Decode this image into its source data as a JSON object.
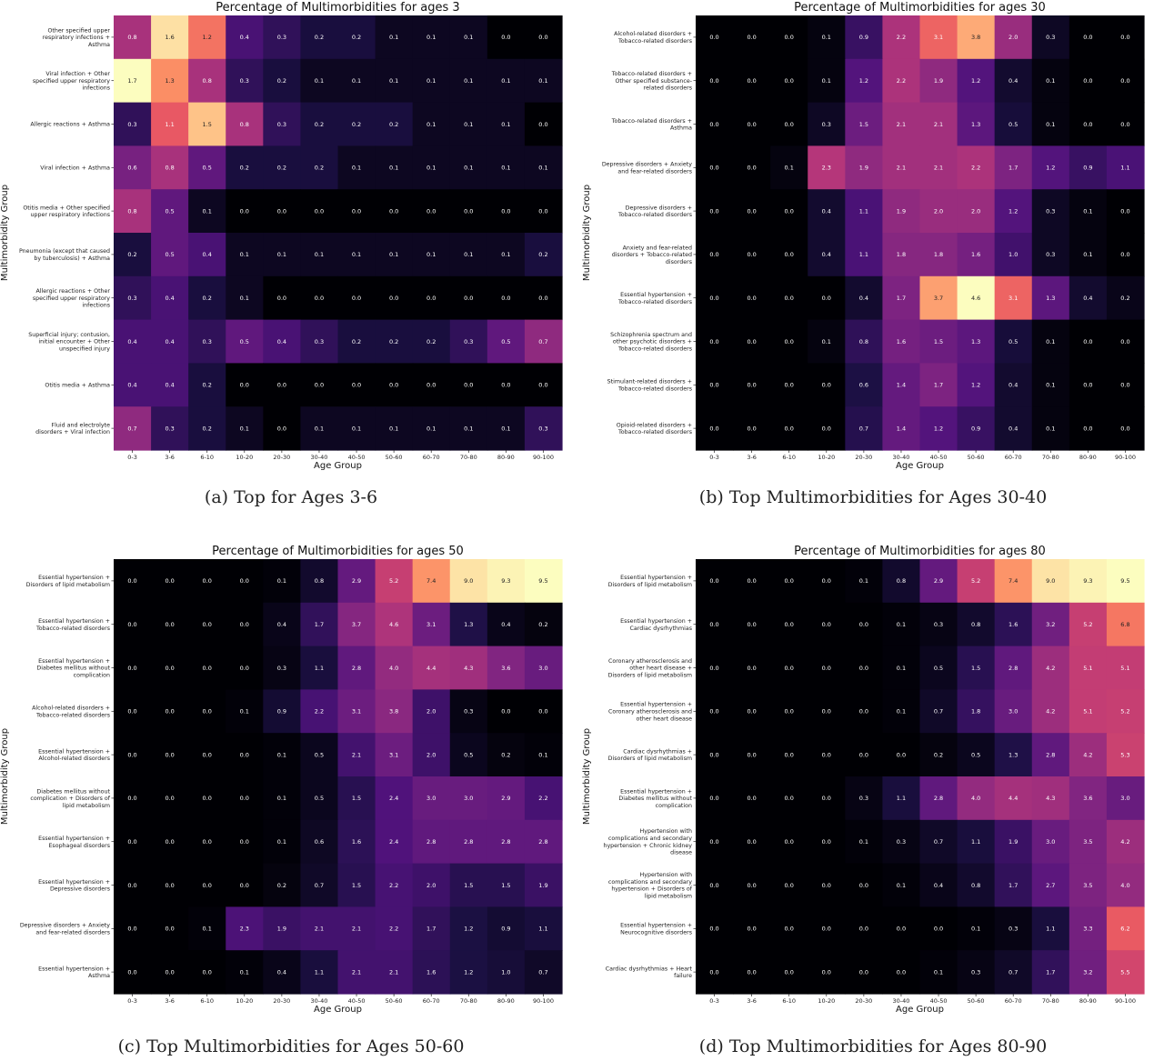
{
  "chart_data": [
    {
      "type": "heatmap",
      "title": "Percentage of Multimorbidities for ages 3",
      "xlabel": "Age Group",
      "ylabel": "Multimorbidity  Group",
      "caption": "(a) Top for Ages 3-6",
      "categories": [
        "0-3",
        "3-6",
        "6-10",
        "10-20",
        "20-30",
        "30-40",
        "40-50",
        "50-60",
        "60-70",
        "70-80",
        "80-90",
        "90-100"
      ],
      "rows": [
        {
          "label": [
            "Other specified upper",
            "respiratory infections +",
            "Asthma"
          ],
          "values": [
            0.8,
            1.6,
            1.2,
            0.4,
            0.3,
            0.2,
            0.2,
            0.1,
            0.1,
            0.1,
            0.0,
            0.0
          ]
        },
        {
          "label": [
            "Viral infection + Other",
            "specified upper respiratory",
            "infections"
          ],
          "values": [
            1.7,
            1.3,
            0.8,
            0.3,
            0.2,
            0.1,
            0.1,
            0.1,
            0.1,
            0.1,
            0.1,
            0.1
          ]
        },
        {
          "label": [
            "Allergic reactions + Asthma"
          ],
          "values": [
            0.3,
            1.1,
            1.5,
            0.8,
            0.3,
            0.2,
            0.2,
            0.2,
            0.1,
            0.1,
            0.1,
            0.0
          ]
        },
        {
          "label": [
            "Viral infection + Asthma"
          ],
          "values": [
            0.6,
            0.8,
            0.5,
            0.2,
            0.2,
            0.2,
            0.1,
            0.1,
            0.1,
            0.1,
            0.1,
            0.1
          ]
        },
        {
          "label": [
            "Otitis media + Other specified",
            "upper respiratory infections"
          ],
          "values": [
            0.8,
            0.5,
            0.1,
            0.0,
            0.0,
            0.0,
            0.0,
            0.0,
            0.0,
            0.0,
            0.0,
            0.0
          ]
        },
        {
          "label": [
            "Pneumonia (except that caused",
            "by tuberculosis) + Asthma"
          ],
          "values": [
            0.2,
            0.5,
            0.4,
            0.1,
            0.1,
            0.1,
            0.1,
            0.1,
            0.1,
            0.1,
            0.1,
            0.2
          ]
        },
        {
          "label": [
            "Allergic reactions + Other",
            "specified upper respiratory",
            "infections"
          ],
          "values": [
            0.3,
            0.4,
            0.2,
            0.1,
            0.0,
            0.0,
            0.0,
            0.0,
            0.0,
            0.0,
            0.0,
            0.0
          ]
        },
        {
          "label": [
            "Superficial injury; contusion,",
            "initial encounter + Other",
            "unspecified injury"
          ],
          "values": [
            0.4,
            0.4,
            0.3,
            0.5,
            0.4,
            0.3,
            0.2,
            0.2,
            0.2,
            0.3,
            0.5,
            0.7
          ]
        },
        {
          "label": [
            "Otitis media + Asthma"
          ],
          "values": [
            0.4,
            0.4,
            0.2,
            0.0,
            0.0,
            0.0,
            0.0,
            0.0,
            0.0,
            0.0,
            0.0,
            0.0
          ]
        },
        {
          "label": [
            "Fluid and electrolyte",
            "disorders + Viral infection"
          ],
          "values": [
            0.7,
            0.3,
            0.2,
            0.1,
            0.0,
            0.1,
            0.1,
            0.1,
            0.1,
            0.1,
            0.1,
            0.3
          ]
        }
      ]
    },
    {
      "type": "heatmap",
      "title": "Percentage of Multimorbidities for ages 30",
      "xlabel": "Age Group",
      "ylabel": "Multimorbidity  Group",
      "caption": "(b) Top Multimorbidities for Ages 30-40",
      "categories": [
        "0-3",
        "3-6",
        "6-10",
        "10-20",
        "20-30",
        "30-40",
        "40-50",
        "50-60",
        "60-70",
        "70-80",
        "80-90",
        "90-100"
      ],
      "rows": [
        {
          "label": [
            "Alcohol-related disorders +",
            "Tobacco-related disorders"
          ],
          "values": [
            0.0,
            0.0,
            0.0,
            0.1,
            0.9,
            2.2,
            3.1,
            3.8,
            2.0,
            0.3,
            0.0,
            0.0
          ]
        },
        {
          "label": [
            "Tobacco-related disorders +",
            "Other specified substance-",
            "related disorders"
          ],
          "values": [
            0.0,
            0.0,
            0.0,
            0.1,
            1.2,
            2.2,
            1.9,
            1.2,
            0.4,
            0.1,
            0.0,
            0.0
          ]
        },
        {
          "label": [
            "Tobacco-related disorders +",
            "Asthma"
          ],
          "values": [
            0.0,
            0.0,
            0.0,
            0.3,
            1.5,
            2.1,
            2.1,
            1.3,
            0.5,
            0.1,
            0.0,
            0.0
          ]
        },
        {
          "label": [
            "Depressive disorders + Anxiety",
            "and fear-related disorders"
          ],
          "values": [
            0.0,
            0.0,
            0.1,
            2.3,
            1.9,
            2.1,
            2.1,
            2.2,
            1.7,
            1.2,
            0.9,
            1.1
          ]
        },
        {
          "label": [
            "Depressive disorders +",
            "Tobacco-related disorders"
          ],
          "values": [
            0.0,
            0.0,
            0.0,
            0.4,
            1.1,
            1.9,
            2.0,
            2.0,
            1.2,
            0.3,
            0.1,
            0.0
          ]
        },
        {
          "label": [
            "Anxiety and fear-related",
            "disorders + Tobacco-related",
            "disorders"
          ],
          "values": [
            0.0,
            0.0,
            0.0,
            0.4,
            1.1,
            1.8,
            1.8,
            1.6,
            1.0,
            0.3,
            0.1,
            0.0
          ]
        },
        {
          "label": [
            "Essential hypertension +",
            "Tobacco-related disorders"
          ],
          "values": [
            0.0,
            0.0,
            0.0,
            0.0,
            0.4,
            1.7,
            3.7,
            4.6,
            3.1,
            1.3,
            0.4,
            0.2
          ]
        },
        {
          "label": [
            "Schizophrenia spectrum and",
            "other psychotic disorders +",
            "Tobacco-related disorders"
          ],
          "values": [
            0.0,
            0.0,
            0.0,
            0.1,
            0.8,
            1.6,
            1.5,
            1.3,
            0.5,
            0.1,
            0.0,
            0.0
          ]
        },
        {
          "label": [
            "Stimulant-related disorders +",
            "Tobacco-related disorders"
          ],
          "values": [
            0.0,
            0.0,
            0.0,
            0.0,
            0.6,
            1.4,
            1.7,
            1.2,
            0.4,
            0.1,
            0.0,
            0.0
          ]
        },
        {
          "label": [
            "Opioid-related disorders +",
            "Tobacco-related disorders"
          ],
          "values": [
            0.0,
            0.0,
            0.0,
            0.0,
            0.7,
            1.4,
            1.2,
            0.9,
            0.4,
            0.1,
            0.0,
            0.0
          ]
        }
      ]
    },
    {
      "type": "heatmap",
      "title": "Percentage of Multimorbidities for ages 50",
      "xlabel": "Age Group",
      "ylabel": "Multimorbidity  Group",
      "caption": "(c) Top Multimorbidities for Ages 50-60",
      "categories": [
        "0-3",
        "3-6",
        "6-10",
        "10-20",
        "20-30",
        "30-40",
        "40-50",
        "50-60",
        "60-70",
        "70-80",
        "80-90",
        "90-100"
      ],
      "rows": [
        {
          "label": [
            "Essential hypertension +",
            "Disorders of lipid metabolism"
          ],
          "values": [
            0.0,
            0.0,
            0.0,
            0.0,
            0.1,
            0.8,
            2.9,
            5.2,
            7.4,
            9.0,
            9.3,
            9.5
          ]
        },
        {
          "label": [
            "Essential hypertension +",
            "Tobacco-related disorders"
          ],
          "values": [
            0.0,
            0.0,
            0.0,
            0.0,
            0.4,
            1.7,
            3.7,
            4.6,
            3.1,
            1.3,
            0.4,
            0.2
          ]
        },
        {
          "label": [
            "Essential hypertension +",
            "Diabetes mellitus without",
            "complication"
          ],
          "values": [
            0.0,
            0.0,
            0.0,
            0.0,
            0.3,
            1.1,
            2.8,
            4.0,
            4.4,
            4.3,
            3.6,
            3.0
          ]
        },
        {
          "label": [
            "Alcohol-related disorders +",
            "Tobacco-related disorders"
          ],
          "values": [
            0.0,
            0.0,
            0.0,
            0.1,
            0.9,
            2.2,
            3.1,
            3.8,
            2.0,
            0.3,
            0.0,
            0.0
          ]
        },
        {
          "label": [
            "Essential hypertension +",
            "Alcohol-related disorders"
          ],
          "values": [
            0.0,
            0.0,
            0.0,
            0.0,
            0.1,
            0.5,
            2.1,
            3.1,
            2.0,
            0.5,
            0.2,
            0.1
          ]
        },
        {
          "label": [
            "Diabetes mellitus without",
            "complication + Disorders of",
            "lipid metabolism"
          ],
          "values": [
            0.0,
            0.0,
            0.0,
            0.0,
            0.1,
            0.5,
            1.5,
            2.4,
            3.0,
            3.0,
            2.9,
            2.2
          ]
        },
        {
          "label": [
            "Essential hypertension +",
            "Esophageal disorders"
          ],
          "values": [
            0.0,
            0.0,
            0.0,
            0.0,
            0.1,
            0.6,
            1.6,
            2.4,
            2.8,
            2.8,
            2.8,
            2.8
          ]
        },
        {
          "label": [
            "Essential hypertension +",
            "Depressive disorders"
          ],
          "values": [
            0.0,
            0.0,
            0.0,
            0.0,
            0.2,
            0.7,
            1.5,
            2.2,
            2.0,
            1.5,
            1.5,
            1.9
          ]
        },
        {
          "label": [
            "Depressive disorders + Anxiety",
            "and fear-related disorders"
          ],
          "values": [
            0.0,
            0.0,
            0.1,
            2.3,
            1.9,
            2.1,
            2.1,
            2.2,
            1.7,
            1.2,
            0.9,
            1.1
          ]
        },
        {
          "label": [
            "Essential hypertension +",
            "Asthma"
          ],
          "values": [
            0.0,
            0.0,
            0.0,
            0.1,
            0.4,
            1.1,
            2.1,
            2.1,
            1.6,
            1.2,
            1.0,
            0.7
          ]
        }
      ]
    },
    {
      "type": "heatmap",
      "title": "Percentage of Multimorbidities for ages 80",
      "xlabel": "Age Group",
      "ylabel": "Multimorbidity  Group",
      "caption": "(d) Top Multimorbidities for Ages 80-90",
      "categories": [
        "0-3",
        "3-6",
        "6-10",
        "10-20",
        "20-30",
        "30-40",
        "40-50",
        "50-60",
        "60-70",
        "70-80",
        "80-90",
        "90-100"
      ],
      "rows": [
        {
          "label": [
            "Essential hypertension +",
            "Disorders of lipid metabolism"
          ],
          "values": [
            0.0,
            0.0,
            0.0,
            0.0,
            0.1,
            0.8,
            2.9,
            5.2,
            7.4,
            9.0,
            9.3,
            9.5
          ]
        },
        {
          "label": [
            "Essential hypertension +",
            "Cardiac dysrhythmias"
          ],
          "values": [
            0.0,
            0.0,
            0.0,
            0.0,
            0.0,
            0.1,
            0.3,
            0.8,
            1.6,
            3.2,
            5.2,
            6.8
          ]
        },
        {
          "label": [
            "Coronary atherosclerosis and",
            "other heart disease +",
            "Disorders of lipid metabolism"
          ],
          "values": [
            0.0,
            0.0,
            0.0,
            0.0,
            0.0,
            0.1,
            0.5,
            1.5,
            2.8,
            4.2,
            5.1,
            5.1
          ]
        },
        {
          "label": [
            "Essential hypertension +",
            "Coronary atherosclerosis and",
            "other heart disease"
          ],
          "values": [
            0.0,
            0.0,
            0.0,
            0.0,
            0.0,
            0.1,
            0.7,
            1.8,
            3.0,
            4.2,
            5.1,
            5.2
          ]
        },
        {
          "label": [
            "Cardiac dysrhythmias +",
            "Disorders of lipid metabolism"
          ],
          "values": [
            0.0,
            0.0,
            0.0,
            0.0,
            0.0,
            0.0,
            0.2,
            0.5,
            1.3,
            2.8,
            4.2,
            5.3
          ]
        },
        {
          "label": [
            "Essential hypertension +",
            "Diabetes mellitus without",
            "complication"
          ],
          "values": [
            0.0,
            0.0,
            0.0,
            0.0,
            0.3,
            1.1,
            2.8,
            4.0,
            4.4,
            4.3,
            3.6,
            3.0
          ]
        },
        {
          "label": [
            "Hypertension with",
            "complications and secondary",
            "hypertension + Chronic kidney",
            "disease"
          ],
          "values": [
            0.0,
            0.0,
            0.0,
            0.0,
            0.1,
            0.3,
            0.7,
            1.1,
            1.9,
            3.0,
            3.5,
            4.2
          ]
        },
        {
          "label": [
            "Hypertension with",
            "complications and secondary",
            "hypertension + Disorders of",
            "lipid metabolism"
          ],
          "values": [
            0.0,
            0.0,
            0.0,
            0.0,
            0.0,
            0.1,
            0.4,
            0.8,
            1.7,
            2.7,
            3.5,
            4.0
          ]
        },
        {
          "label": [
            "Essential hypertension +",
            "Neurocognitive disorders"
          ],
          "values": [
            0.0,
            0.0,
            0.0,
            0.0,
            0.0,
            0.0,
            0.0,
            0.1,
            0.3,
            1.1,
            3.3,
            6.2
          ]
        },
        {
          "label": [
            "Cardiac dysrhythmias + Heart",
            "failure"
          ],
          "values": [
            0.0,
            0.0,
            0.0,
            0.0,
            0.0,
            0.0,
            0.1,
            0.3,
            0.7,
            1.7,
            3.2,
            5.5
          ]
        }
      ]
    }
  ]
}
